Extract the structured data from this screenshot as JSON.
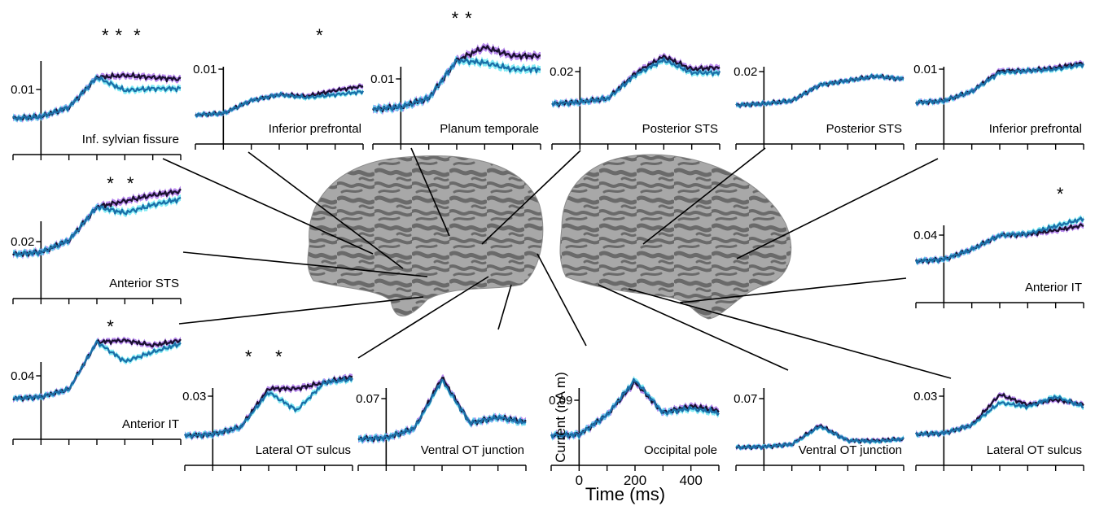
{
  "colors": {
    "condition_a_line": "#1a1030",
    "condition_a_band": "#a060e8",
    "condition_b_line": "#1a6fa8",
    "condition_b_band": "#40e0f0",
    "brain_light": "#a8a8a8",
    "brain_dark": "#6a6a6a"
  },
  "axes": {
    "ylabel": "Current (nA m)",
    "xlabel": "Time (ms)",
    "x_ticks": [
      "0",
      "200",
      "400"
    ]
  },
  "chart_data": [
    {
      "type": "line",
      "title": "Inf. sylvian fissure",
      "hemisphere": "left",
      "y_tick": "0.01",
      "stars": 3,
      "ylim": [
        0,
        0.02
      ],
      "x": [
        -100,
        0,
        100,
        200,
        300,
        400,
        500
      ],
      "series": [
        {
          "values": [
            0.0005,
            0.001,
            0.0035,
            0.0115,
            0.012,
            0.0115,
            0.011
          ]
        },
        {
          "values": [
            0.0005,
            0.001,
            0.0035,
            0.0115,
            0.008,
            0.0085,
            0.0085
          ]
        }
      ]
    },
    {
      "type": "line",
      "title": "Inferior prefrontal",
      "hemisphere": "left",
      "y_tick": "0.01",
      "stars": 1,
      "ylim": [
        0,
        0.02
      ],
      "x": [
        -100,
        0,
        100,
        200,
        300,
        400,
        500
      ],
      "series": [
        {
          "values": [
            0.0005,
            0.001,
            0.0055,
            0.0075,
            0.007,
            0.009,
            0.0105
          ]
        },
        {
          "values": [
            0.0005,
            0.001,
            0.0055,
            0.0075,
            0.0065,
            0.0075,
            0.0085
          ]
        }
      ]
    },
    {
      "type": "line",
      "title": "Planum temporale",
      "hemisphere": "left",
      "y_tick": "0.01",
      "stars": 2,
      "ylim": [
        0,
        0.02
      ],
      "x": [
        -100,
        0,
        100,
        200,
        300,
        400,
        500
      ],
      "series": [
        {
          "values": [
            0.0005,
            0.001,
            0.003,
            0.0115,
            0.0145,
            0.0125,
            0.0125
          ]
        },
        {
          "values": [
            0.0005,
            0.001,
            0.003,
            0.0115,
            0.011,
            0.0095,
            0.0095
          ]
        }
      ]
    },
    {
      "type": "line",
      "title": "Posterior STS",
      "hemisphere": "left",
      "y_tick": "0.02",
      "stars": 0,
      "ylim": [
        0,
        0.04
      ],
      "x": [
        -100,
        0,
        100,
        200,
        300,
        400,
        500
      ],
      "series": [
        {
          "values": [
            0.001,
            0.002,
            0.004,
            0.018,
            0.027,
            0.02,
            0.021
          ]
        },
        {
          "values": [
            0.001,
            0.002,
            0.004,
            0.017,
            0.025,
            0.018,
            0.018
          ]
        }
      ]
    },
    {
      "type": "line",
      "title": "Posterior STS",
      "hemisphere": "right",
      "y_tick": "0.02",
      "stars": 0,
      "ylim": [
        0,
        0.04
      ],
      "x": [
        -100,
        0,
        100,
        200,
        300,
        400,
        500
      ],
      "series": [
        {
          "values": [
            0.001,
            0.002,
            0.004,
            0.015,
            0.018,
            0.021,
            0.019
          ]
        },
        {
          "values": [
            0.001,
            0.002,
            0.004,
            0.015,
            0.018,
            0.021,
            0.019
          ]
        }
      ]
    },
    {
      "type": "line",
      "title": "Inferior prefrontal",
      "hemisphere": "right",
      "y_tick": "0.01",
      "stars": 0,
      "ylim": [
        0,
        0.02
      ],
      "x": [
        -100,
        0,
        100,
        200,
        300,
        400,
        500
      ],
      "series": [
        {
          "values": [
            0.0005,
            0.001,
            0.004,
            0.0105,
            0.0105,
            0.0115,
            0.013
          ]
        },
        {
          "values": [
            0.0005,
            0.001,
            0.004,
            0.01,
            0.0105,
            0.011,
            0.0125
          ]
        }
      ]
    },
    {
      "type": "line",
      "title": "Anterior STS",
      "hemisphere": "left",
      "y_tick": "0.02",
      "stars": 2,
      "ylim": [
        0,
        0.04
      ],
      "x": [
        -100,
        0,
        100,
        200,
        300,
        400,
        500
      ],
      "series": [
        {
          "values": [
            0.001,
            0.002,
            0.008,
            0.025,
            0.028,
            0.031,
            0.033
          ]
        },
        {
          "values": [
            0.001,
            0.002,
            0.008,
            0.025,
            0.022,
            0.026,
            0.029
          ]
        }
      ]
    },
    {
      "type": "line",
      "title": "Anterior IT",
      "hemisphere": "right",
      "y_tick": "0.04",
      "stars": 1,
      "ylim": [
        0,
        0.08
      ],
      "x": [
        -100,
        0,
        100,
        200,
        300,
        400,
        500
      ],
      "series": [
        {
          "values": [
            0.001,
            0.003,
            0.015,
            0.032,
            0.033,
            0.038,
            0.044
          ]
        },
        {
          "values": [
            0.001,
            0.003,
            0.015,
            0.032,
            0.034,
            0.043,
            0.052
          ]
        }
      ]
    },
    {
      "type": "line",
      "title": "Anterior IT",
      "hemisphere": "left",
      "y_tick": "0.04",
      "stars": 1,
      "ylim": [
        0,
        0.08
      ],
      "x": [
        -100,
        0,
        100,
        200,
        300,
        400,
        500
      ],
      "series": [
        {
          "values": [
            0.001,
            0.003,
            0.012,
            0.068,
            0.07,
            0.064,
            0.07
          ]
        },
        {
          "values": [
            0.001,
            0.003,
            0.012,
            0.068,
            0.045,
            0.056,
            0.066
          ]
        }
      ]
    },
    {
      "type": "line",
      "title": "Lateral OT sulcus",
      "hemisphere": "left",
      "y_tick": "0.03",
      "stars": 2,
      "ylim": [
        0,
        0.06
      ],
      "x": [
        -100,
        0,
        100,
        200,
        300,
        400,
        500
      ],
      "series": [
        {
          "values": [
            0.001,
            0.002,
            0.008,
            0.04,
            0.04,
            0.045,
            0.05
          ]
        },
        {
          "values": [
            0.001,
            0.002,
            0.008,
            0.037,
            0.022,
            0.045,
            0.048
          ]
        }
      ]
    },
    {
      "type": "line",
      "title": "Ventral OT junction",
      "hemisphere": "left",
      "y_tick": "0.07",
      "stars": 0,
      "ylim": [
        0,
        0.14
      ],
      "x": [
        -100,
        0,
        100,
        200,
        300,
        400,
        500
      ],
      "series": [
        {
          "values": [
            0.002,
            0.004,
            0.02,
            0.11,
            0.03,
            0.04,
            0.032
          ]
        },
        {
          "values": [
            0.002,
            0.004,
            0.02,
            0.105,
            0.03,
            0.04,
            0.03
          ]
        }
      ]
    },
    {
      "type": "line",
      "title": "Occipital pole",
      "hemisphere": "medial",
      "y_tick": "0.09",
      "stars": 0,
      "ylim": [
        0,
        0.18
      ],
      "x": [
        -100,
        0,
        100,
        200,
        300,
        400,
        500
      ],
      "series": [
        {
          "values": [
            0.003,
            0.005,
            0.05,
            0.125,
            0.055,
            0.07,
            0.06
          ]
        },
        {
          "values": [
            0.003,
            0.005,
            0.05,
            0.13,
            0.055,
            0.065,
            0.055
          ]
        }
      ]
    },
    {
      "type": "line",
      "title": "Ventral OT junction",
      "hemisphere": "right",
      "y_tick": "0.07",
      "stars": 0,
      "ylim": [
        0,
        0.14
      ],
      "x": [
        -100,
        0,
        100,
        200,
        300,
        400,
        500
      ],
      "series": [
        {
          "values": [
            0.002,
            0.004,
            0.01,
            0.06,
            0.02,
            0.02,
            0.024
          ]
        },
        {
          "values": [
            0.002,
            0.004,
            0.01,
            0.057,
            0.02,
            0.018,
            0.024
          ]
        }
      ]
    },
    {
      "type": "line",
      "title": "Lateral OT sulcus",
      "hemisphere": "right",
      "y_tick": "0.03",
      "stars": 0,
      "ylim": [
        0,
        0.06
      ],
      "x": [
        -100,
        0,
        100,
        200,
        300,
        400,
        500
      ],
      "series": [
        {
          "values": [
            0.001,
            0.002,
            0.01,
            0.04,
            0.03,
            0.035,
            0.03
          ]
        },
        {
          "values": [
            0.001,
            0.002,
            0.01,
            0.032,
            0.028,
            0.038,
            0.028
          ]
        }
      ]
    }
  ]
}
